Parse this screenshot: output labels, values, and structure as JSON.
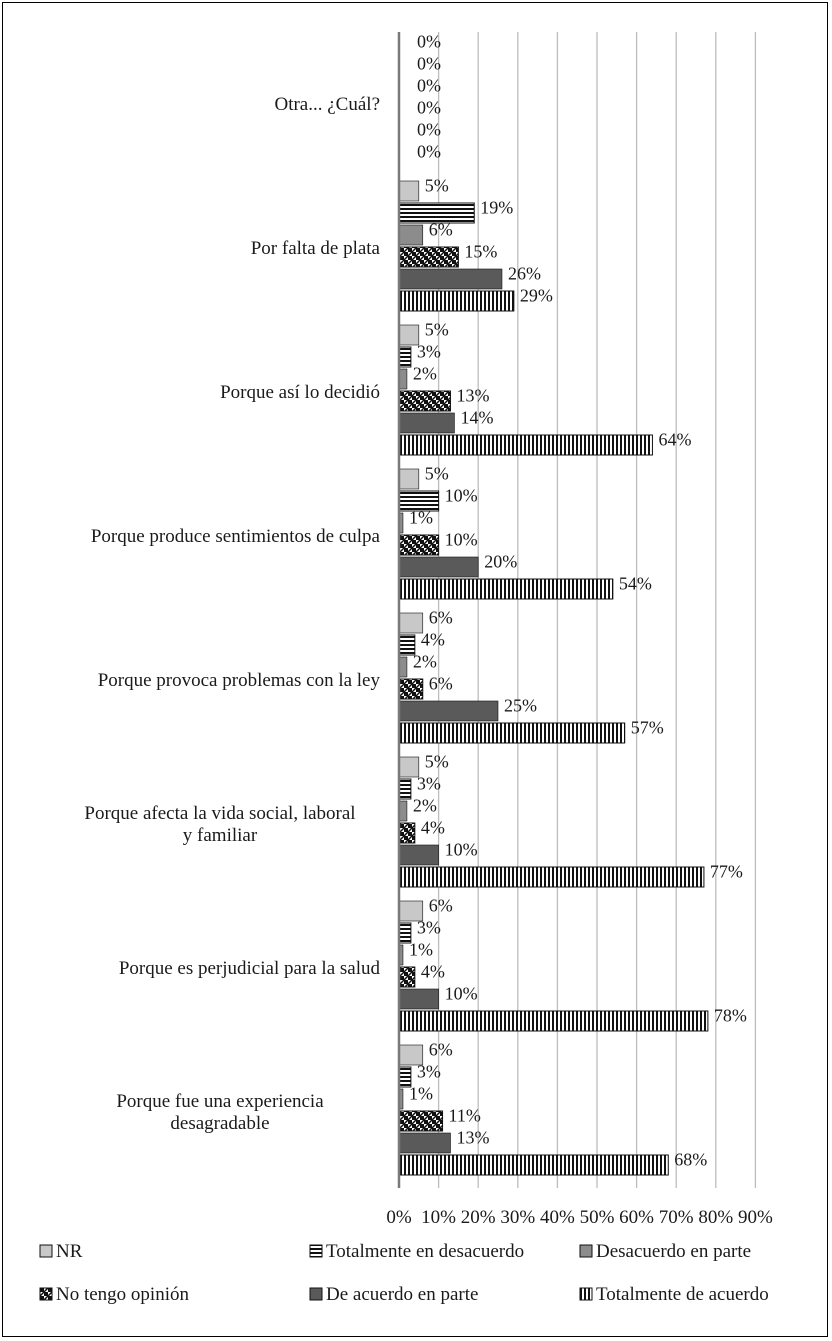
{
  "chart_data": {
    "type": "bar",
    "orientation": "horizontal",
    "title": "",
    "xlabel": "",
    "ylabel": "",
    "xlim": [
      0,
      90
    ],
    "x_ticks": [
      0,
      10,
      20,
      30,
      40,
      50,
      60,
      70,
      80,
      90
    ],
    "x_tick_labels": [
      "0%",
      "10%",
      "20%",
      "30%",
      "40%",
      "50%",
      "60%",
      "70%",
      "80%",
      "90%"
    ],
    "grid": "vertical",
    "legend_position": "bottom",
    "categories": [
      "Otra... ¿Cuál?",
      "Por falta de plata",
      "Porque así lo decidió",
      "Porque produce sentimientos de culpa",
      "Porque provoca problemas con la ley",
      "Porque afecta la vida social, laboral y familiar",
      "Porque es perjudicial para la salud",
      "Porque fue una experiencia desagradable"
    ],
    "series": [
      {
        "name": "NR",
        "color": "#c8c8c8",
        "pattern": "solid-light",
        "values": [
          0,
          5,
          5,
          5,
          6,
          5,
          6,
          6
        ],
        "labels": [
          "0%",
          "5%",
          "5%",
          "5%",
          "6%",
          "5%",
          "6%",
          "6%"
        ]
      },
      {
        "name": "Totalmente en desacuerdo",
        "color": "#000000",
        "pattern": "horizontal-stripes",
        "values": [
          0,
          19,
          3,
          10,
          4,
          3,
          3,
          3
        ],
        "labels": [
          "0%",
          "19%",
          "3%",
          "10%",
          "4%",
          "3%",
          "3%",
          "3%"
        ]
      },
      {
        "name": "Desacuerdo en parte",
        "color": "#8c8c8c",
        "pattern": "solid-mid",
        "values": [
          0,
          6,
          2,
          1,
          2,
          2,
          1,
          1
        ],
        "labels": [
          "0%",
          "6%",
          "2%",
          "1%",
          "2%",
          "2%",
          "1%",
          "1%"
        ]
      },
      {
        "name": "No tengo opinión",
        "color": "#000000",
        "pattern": "diagonal-checker",
        "values": [
          0,
          15,
          13,
          10,
          6,
          4,
          4,
          11
        ],
        "labels": [
          "0%",
          "15%",
          "13%",
          "10%",
          "6%",
          "4%",
          "4%",
          "11%"
        ]
      },
      {
        "name": "De acuerdo en parte",
        "color": "#5a5a5a",
        "pattern": "solid-dark",
        "values": [
          0,
          26,
          14,
          20,
          25,
          10,
          10,
          13
        ],
        "labels": [
          "0%",
          "26%",
          "14%",
          "20%",
          "25%",
          "10%",
          "10%",
          "13%"
        ]
      },
      {
        "name": "Totalmente de acuerdo",
        "color": "#000000",
        "pattern": "vertical-stripes",
        "values": [
          0,
          29,
          64,
          54,
          57,
          77,
          78,
          68
        ],
        "labels": [
          "0%",
          "29%",
          "64%",
          "54%",
          "57%",
          "77%",
          "78%",
          "68%"
        ]
      }
    ]
  }
}
